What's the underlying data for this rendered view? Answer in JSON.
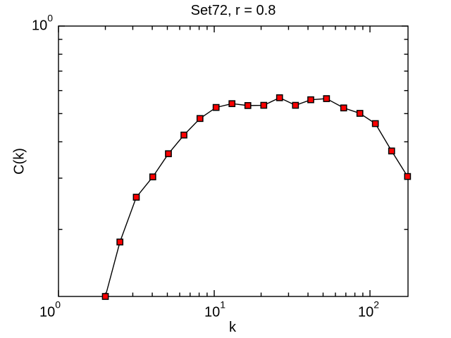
{
  "figure": {
    "background": "#FFFFFF"
  },
  "chart_data": {
    "type": "line",
    "title": "Set72, r = 0.8",
    "xlabel": "k",
    "ylabel": "C(k)",
    "xscale": "log",
    "yscale": "log",
    "xlim": [
      1,
      175.5
    ],
    "ylim": [
      0.1176,
      1
    ],
    "grid": false,
    "legend": null,
    "line_color": "#000000",
    "marker": "square",
    "marker_fill": "#FF0000",
    "marker_edge": "#000000",
    "x": [
      2,
      2.48,
      3.16,
      4.03,
      5.08,
      6.39,
      8.1,
      10.28,
      13.0,
      16.44,
      20.8,
      26.27,
      33.25,
      41.67,
      52.6,
      67.8,
      86.15,
      108.3,
      137.7,
      174.3
    ],
    "y": [
      0.1176,
      0.181,
      0.258,
      0.303,
      0.364,
      0.422,
      0.481,
      0.525,
      0.541,
      0.533,
      0.534,
      0.567,
      0.534,
      0.558,
      0.563,
      0.523,
      0.501,
      0.462,
      0.372,
      0.304
    ],
    "xticks": [
      {
        "base": "10",
        "exp": "0",
        "value": 1
      },
      {
        "base": "10",
        "exp": "1",
        "value": 10
      },
      {
        "base": "10",
        "exp": "2",
        "value": 100
      }
    ],
    "yticks": [
      {
        "base": "10",
        "exp": "0",
        "value": 1
      }
    ]
  }
}
